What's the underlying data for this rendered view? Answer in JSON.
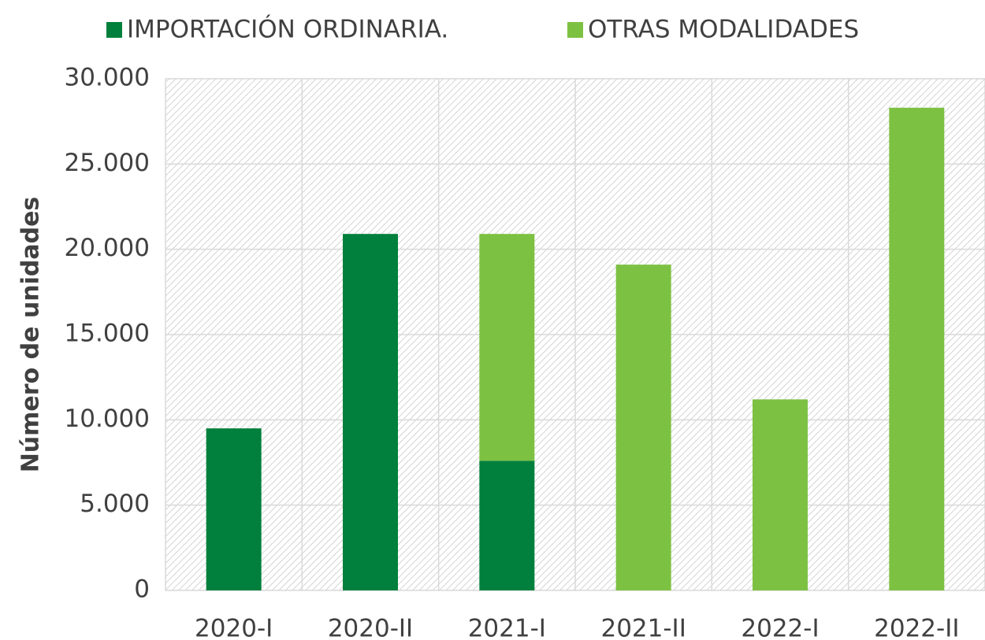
{
  "chart_data": {
    "type": "stacked_bar",
    "y_axis_label": "Número de unidades",
    "categories": [
      "2020-I",
      "2020-II",
      "2021-I",
      "2021-II",
      "2022-I",
      "2022-II"
    ],
    "series": [
      {
        "name": "IMPORTACIÓN ORDINARIA.",
        "color": "#00803c",
        "values": [
          9500,
          20900,
          7600,
          0,
          0,
          0
        ]
      },
      {
        "name": "OTRAS MODALIDADES",
        "color": "#7dc142",
        "values": [
          0,
          0,
          13300,
          19100,
          11200,
          28300
        ]
      }
    ],
    "ylim": [
      0,
      30000
    ],
    "yticks": [
      0,
      {
        "value": 5000,
        "label": "5.000"
      },
      {
        "value": 10000,
        "label": "10.000"
      },
      {
        "value": 15000,
        "label": "15.000"
      },
      {
        "value": 20000,
        "label": "20.000"
      },
      {
        "value": 25000,
        "label": "25.000"
      },
      {
        "value": 30000,
        "label": "30.000"
      }
    ],
    "grid": true,
    "legend": "top"
  }
}
